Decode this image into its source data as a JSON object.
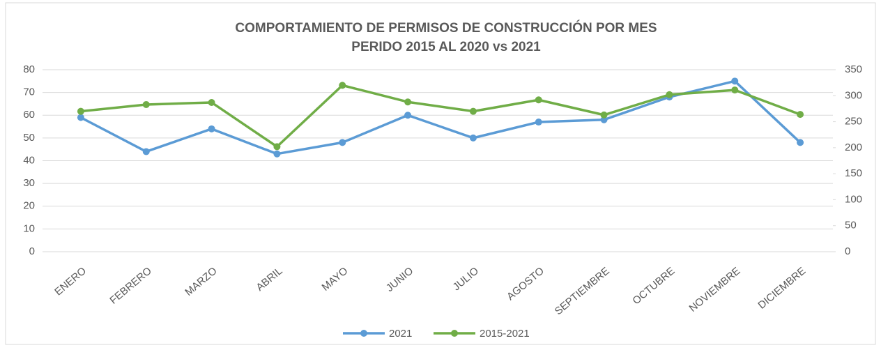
{
  "chart_data": {
    "type": "line",
    "title": "COMPORTAMIENTO DE PERMISOS DE CONSTRUCCIÓN POR MES",
    "subtitle": "PERIDO 2015 AL 2020 vs 2021",
    "categories": [
      "ENERO",
      "FEBRERO",
      "MARZO",
      "ABRIL",
      "MAYO",
      "JUNIO",
      "JULIO",
      "AGOSTO",
      "SEPTIEMBRE",
      "OCTUBRE",
      "NOVIEMBRE",
      "DICIEMBRE"
    ],
    "series": [
      {
        "name": "2021",
        "color": "#5b9bd5",
        "values": [
          59,
          44,
          54,
          43,
          48,
          60,
          50,
          57,
          58,
          68,
          75,
          48
        ]
      },
      {
        "name": "2015-2021",
        "color": "#70ad47",
        "axis": "y2",
        "values": [
          270,
          283,
          287,
          202,
          320,
          288,
          270,
          292,
          263,
          302,
          311,
          264
        ]
      }
    ],
    "ylim": [
      0,
      80
    ],
    "yticks": [
      0,
      10,
      20,
      30,
      40,
      50,
      60,
      70,
      80
    ],
    "y2lim": [
      0,
      350
    ],
    "y2ticks": [
      0,
      50,
      100,
      150,
      200,
      250,
      300,
      350
    ],
    "grid": true,
    "legend": "bottom"
  }
}
